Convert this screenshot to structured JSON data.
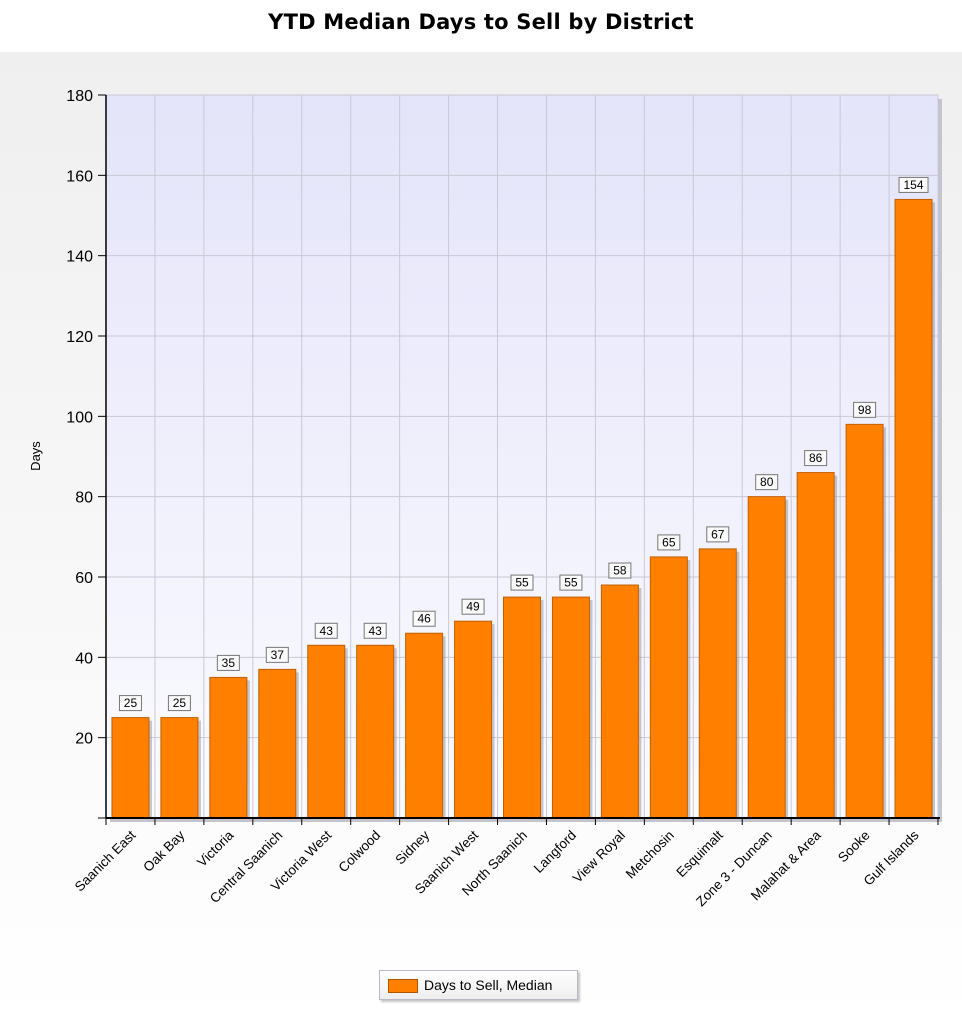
{
  "chart_data": {
    "type": "bar",
    "title": "YTD Median Days to Sell by District",
    "xlabel": "",
    "ylabel": "Days",
    "ylim": [
      0,
      180
    ],
    "yticks": [
      20,
      40,
      60,
      80,
      100,
      120,
      140,
      160,
      180
    ],
    "grid": true,
    "legend": "bottom-center",
    "categories": [
      "Saanich East",
      "Oak Bay",
      "Victoria",
      "Central Saanich",
      "Victoria West",
      "Colwood",
      "Sidney",
      "Saanich West",
      "North Saanich",
      "Langford",
      "View Royal",
      "Metchosin",
      "Esquimalt",
      "Zone 3 - Duncan",
      "Malahat & Area",
      "Sooke",
      "Gulf Islands"
    ],
    "series": [
      {
        "name": "Days to Sell, Median",
        "color": "#ff8000",
        "values": [
          25,
          25,
          35,
          37,
          43,
          43,
          46,
          49,
          55,
          55,
          58,
          65,
          67,
          80,
          86,
          98,
          154
        ]
      }
    ]
  }
}
